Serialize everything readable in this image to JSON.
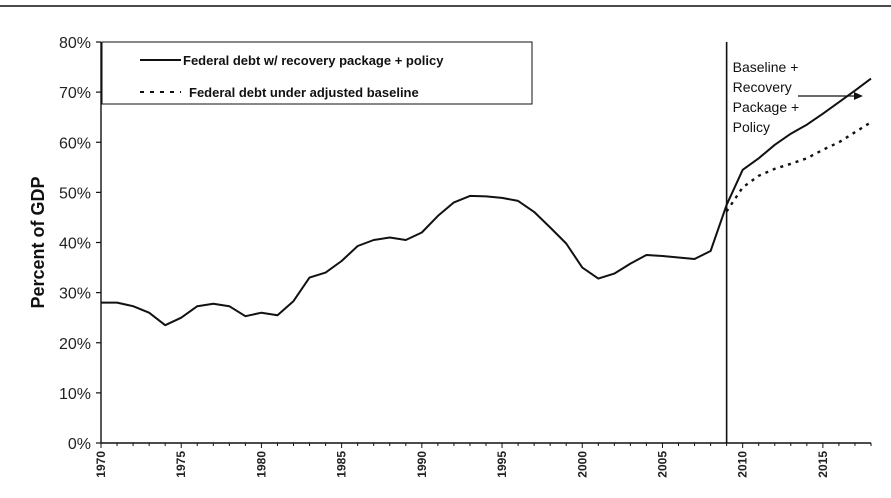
{
  "chart_data": {
    "type": "line",
    "title": "",
    "xlabel": "",
    "ylabel": "Percent of GDP",
    "xlim": [
      1970,
      2018
    ],
    "ylim": [
      0,
      80
    ],
    "y_ticks": [
      "0%",
      "10%",
      "20%",
      "30%",
      "40%",
      "50%",
      "60%",
      "70%",
      "80%"
    ],
    "y_tick_values": [
      0,
      10,
      20,
      30,
      40,
      50,
      60,
      70,
      80
    ],
    "x_ticks": [
      "1970",
      "1975",
      "1980",
      "1985",
      "1990",
      "1995",
      "2000",
      "2005",
      "2010",
      "2015"
    ],
    "x_tick_values": [
      1970,
      1975,
      1980,
      1985,
      1990,
      1995,
      2000,
      2005,
      2010,
      2015
    ],
    "grid": false,
    "legend_position": "top-left",
    "series": [
      {
        "name": "Federal debt w/ recovery package + policy",
        "style": "solid",
        "color": "#111111",
        "x": [
          1970,
          1971,
          1972,
          1973,
          1974,
          1975,
          1976,
          1977,
          1978,
          1979,
          1980,
          1981,
          1982,
          1983,
          1984,
          1985,
          1986,
          1987,
          1988,
          1989,
          1990,
          1991,
          1992,
          1993,
          1994,
          1995,
          1996,
          1997,
          1998,
          1999,
          2000,
          2001,
          2002,
          2003,
          2004,
          2005,
          2006,
          2007,
          2008,
          2009,
          2010,
          2011,
          2012,
          2013,
          2014,
          2015,
          2016,
          2017,
          2018
        ],
        "y": [
          28.0,
          28.0,
          27.3,
          26.0,
          23.5,
          25.0,
          27.3,
          27.8,
          27.3,
          25.3,
          26.0,
          25.5,
          28.3,
          33.0,
          34.0,
          36.3,
          39.3,
          40.5,
          41.0,
          40.5,
          42.0,
          45.3,
          48.0,
          49.3,
          49.2,
          48.9,
          48.3,
          46.1,
          43.0,
          39.8,
          35.0,
          32.8,
          33.8,
          35.8,
          37.5,
          37.3,
          37.0,
          36.7,
          38.3,
          47.5,
          54.5,
          56.8,
          59.5,
          61.7,
          63.5,
          65.7,
          68.0,
          70.3,
          72.7
        ]
      },
      {
        "name": "Federal debt under adjusted baseline",
        "style": "dashed",
        "color": "#111111",
        "x": [
          2009,
          2010,
          2011,
          2012,
          2013,
          2014,
          2015,
          2016,
          2017,
          2018
        ],
        "y": [
          46.2,
          51.0,
          53.3,
          54.7,
          55.7,
          56.8,
          58.5,
          60.0,
          62.0,
          64.0
        ]
      }
    ],
    "annotations": [
      {
        "lines": [
          "Baseline +",
          "Recovery",
          "Package +",
          "Policy"
        ],
        "arrow_to": {
          "x": 2017.5,
          "y": 72
        }
      }
    ],
    "vertical_marker": {
      "x": 2009
    }
  }
}
